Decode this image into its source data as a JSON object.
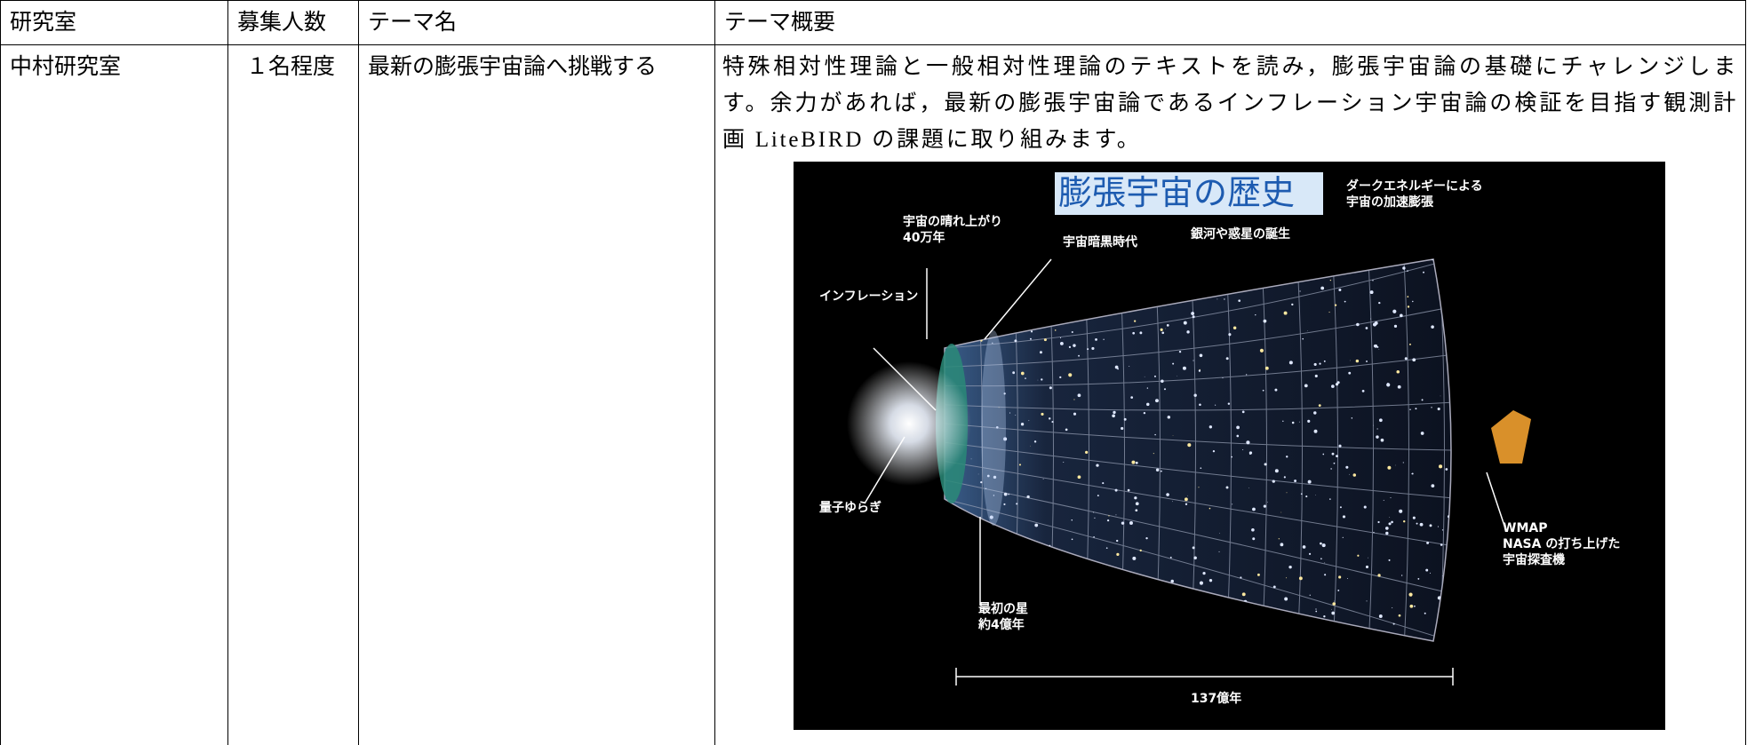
{
  "table": {
    "header": [
      "研究室",
      "募集人数",
      "テーマ名",
      "テーマ概要"
    ],
    "rows": [
      [
        "中村研究室",
        "１名程度",
        "最新の膨張宇宙論へ挑戦する",
        "特殊相対性理論と一般相対性理論のテキストを読み，膨張宇宙論の基礎にチャレンジします。余力があれば，最新の膨張宇宙論であるインフレーション宇宙論の検証を目指す観測計画 LiteBIRD の課題に取り組みます。"
      ]
    ]
  },
  "figure": {
    "title": "膨張宇宙の歴史",
    "labels": [
      {
        "lines": [
          "ダークエネルギーによる",
          "宇宙の加速膨張"
        ]
      },
      {
        "lines": [
          "宇宙の晴れ上がり",
          "40万年"
        ]
      },
      {
        "lines": [
          "宇宙暗黒時代"
        ]
      },
      {
        "lines": [
          "銀河や惑星の誕生"
        ]
      },
      {
        "lines": [
          "インフレーション"
        ]
      },
      {
        "lines": [
          "量子ゆらぎ"
        ]
      },
      {
        "lines": [
          "最初の星",
          "約4億年"
        ]
      },
      {
        "lines": [
          "WMAP",
          "NASA の打ち上げた",
          "宇宙探査機"
        ]
      },
      {
        "lines": [
          "137億年"
        ]
      }
    ]
  }
}
